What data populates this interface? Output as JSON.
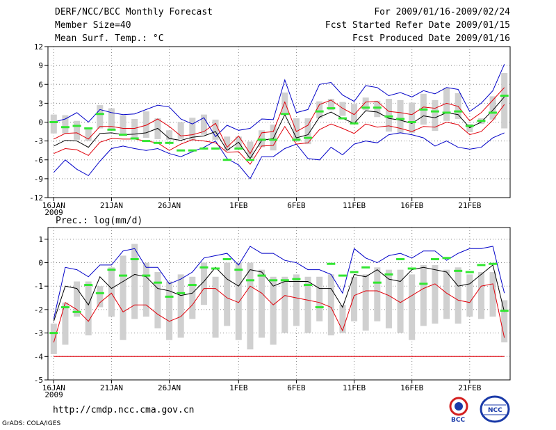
{
  "header": {
    "title": "DERF/NCC/BCC Monthly Forecast",
    "member_size": "Member Size=40",
    "variable": "Mean Surf. Temp.: °C",
    "forecast_period": "For 2009/01/16-2009/02/24",
    "started_date": "Fcst Started Refer Date 2009/01/15",
    "produced_date": "Fcst Produced Date 2009/01/16"
  },
  "footer": {
    "url": "http://cmdp.ncc.cma.gov.cn",
    "grads": "GrADS: COLA/IGES",
    "logo_bcc": "BCC",
    "logo_ncc": "NCC"
  },
  "colors": {
    "box": "#d0d0d0",
    "mean": "#000000",
    "envelope": "#0000c8",
    "inner": "#e0000a",
    "obs": "#32e632",
    "grid": "#888888"
  },
  "chart_data": [
    {
      "type": "line",
      "title": "Mean Surf. Temp.: °C",
      "ylabel": "°C",
      "ylim": [
        -12,
        12
      ],
      "yticks": [
        12,
        9,
        6,
        3,
        0,
        -3,
        -6,
        -9,
        -12
      ],
      "xlim": [
        -0.5,
        39.5
      ],
      "xticks": [
        {
          "day": 0,
          "label": "16JAN",
          "sub": "2009"
        },
        {
          "day": 5,
          "label": "21JAN"
        },
        {
          "day": 10,
          "label": "26JAN"
        },
        {
          "day": 16,
          "label": "1FEB"
        },
        {
          "day": 21,
          "label": "6FEB"
        },
        {
          "day": 26,
          "label": "11FEB"
        },
        {
          "day": 31,
          "label": "16FEB"
        },
        {
          "day": 36,
          "label": "21FEB"
        }
      ],
      "series": [
        {
          "name": "max",
          "color": "envelope",
          "values": [
            -8,
            -6,
            -7.5,
            -8.5,
            -6.2,
            -4.2,
            -3.8,
            -4.2,
            -4.5,
            -4.2,
            -5,
            -5.5,
            -4.7,
            -4,
            -3,
            -5.8,
            -6.8,
            -9,
            -5.5,
            -5.5,
            -4.2,
            -3.5,
            -5.8,
            -6,
            -4,
            -5.2,
            -3.5,
            -3,
            -3.3,
            -2,
            -1.7,
            -2,
            -2.5,
            -3.8,
            -3,
            -4,
            -4.3,
            -4,
            -2.5,
            -1.7
          ]
        },
        {
          "name": "min",
          "color": "envelope",
          "values": [
            0,
            0.5,
            1.5,
            0,
            2,
            1.5,
            1.2,
            1.3,
            2,
            2.7,
            2.4,
            0.5,
            -0.3,
            0.7,
            -2.3,
            -0.5,
            -1.3,
            -1,
            0.5,
            0.4,
            6.7,
            1.5,
            2,
            6,
            6.3,
            4.3,
            3.3,
            5.8,
            5.5,
            4.2,
            4.7,
            4,
            5,
            4.5,
            5.5,
            5.2,
            1.7,
            3,
            5,
            9.2
          ]
        },
        {
          "name": "upper",
          "color": "inner",
          "values": [
            -2.7,
            -1.8,
            -1.7,
            -2.7,
            -0.7,
            -0.7,
            -1,
            -1,
            -0.5,
            0.5,
            -0.7,
            -2.2,
            -2,
            -1.5,
            -0.2,
            -4,
            -2.2,
            -5,
            -1.7,
            -1.5,
            3.2,
            -1.5,
            -0.5,
            2.8,
            3.5,
            2.2,
            1.2,
            3.2,
            3.3,
            1.7,
            1.5,
            1.2,
            2.4,
            2.2,
            3,
            2.5,
            0.2,
            1.5,
            3.5,
            5.5
          ]
        },
        {
          "name": "lower",
          "color": "inner",
          "values": [
            -5,
            -4.2,
            -4.4,
            -5.3,
            -3.2,
            -2.6,
            -2.7,
            -2.7,
            -3,
            -3.3,
            -4.5,
            -3.5,
            -2.8,
            -3,
            -3.3,
            -4.8,
            -4.7,
            -6.7,
            -3.8,
            -3.7,
            -0.7,
            -3.5,
            -3.3,
            -1.2,
            -0.3,
            -1,
            -1.8,
            -0.3,
            -0.8,
            -0.6,
            -1,
            -1.5,
            -0.7,
            -0.8,
            0,
            -0.4,
            -2,
            -1.5,
            0.3,
            2.8
          ]
        },
        {
          "name": "mean",
          "color": "mean",
          "values": [
            -3.8,
            -2.9,
            -3,
            -4,
            -1.8,
            -1.7,
            -2,
            -1.9,
            -1.7,
            -1,
            -2.6,
            -2.9,
            -2.4,
            -2.2,
            -1.5,
            -4.5,
            -3.2,
            -5.8,
            -2.9,
            -2.6,
            1.2,
            -2.5,
            -2,
            0.8,
            1.6,
            0.6,
            -0.2,
            1.8,
            1.6,
            0.6,
            0.3,
            -0.2,
            1,
            0.7,
            1.5,
            1.2,
            -0.9,
            0,
            1.9,
            4
          ]
        },
        {
          "name": "box_low",
          "color": "box",
          "values": [
            -1.8,
            -1.8,
            -2.8,
            -3,
            -1,
            -1.3,
            -2.2,
            -2.5,
            -2.5,
            -2.7,
            -2.8,
            -2.7,
            -2.9,
            -2,
            -2.8,
            -4.5,
            -4.3,
            -5.7,
            -4,
            -4.5,
            1.5,
            -3.1,
            -3.5,
            0.6,
            1.9,
            1,
            -0.1,
            1.9,
            0.8,
            -1.5,
            -1.7,
            -1.7,
            -0.4,
            -1.4,
            0.2,
            0.5,
            -1.6,
            -0.3,
            0.4,
            -1
          ]
        },
        {
          "name": "box_high",
          "color": "box",
          "values": [
            1.2,
            1.1,
            0.2,
            -0.9,
            2.7,
            2.2,
            1.1,
            0.5,
            1.7,
            0.6,
            -1.3,
            0,
            0.7,
            1.2,
            0.4,
            -2.3,
            -2.3,
            -3.1,
            -1.3,
            -0.4,
            4.7,
            0.6,
            0.6,
            3.3,
            3.7,
            3.2,
            2.9,
            3.9,
            3.4,
            3.7,
            3.5,
            3.1,
            4.5,
            3.5,
            5.4,
            4.6,
            -0.3,
            0.6,
            4.1,
            7.8
          ]
        },
        {
          "name": "obs",
          "color": "obs",
          "values": [
            0,
            -0.8,
            -0.6,
            -1,
            1.3,
            -1.2,
            -2,
            -2.6,
            -3,
            -3.3,
            -3.3,
            -4.5,
            -4.5,
            -4.2,
            -4.2,
            -6,
            -4.2,
            -6,
            -2.8,
            -2.8,
            1.3,
            -2.8,
            -2.5,
            1.7,
            2.2,
            0.6,
            -0.2,
            2.3,
            2.3,
            0.9,
            0.5,
            0,
            2,
            1.7,
            1.5,
            1.7,
            -0.6,
            0.2,
            1.5,
            4.2
          ]
        }
      ]
    },
    {
      "type": "line",
      "title": "Prec.: log(mm/d)",
      "ylabel": "log(mm/d)",
      "ylim": [
        -5,
        1.5
      ],
      "yticks": [
        1,
        0,
        -1,
        -2,
        -3,
        -4,
        -5
      ],
      "xlim": [
        -0.5,
        39.5
      ],
      "xticks": [
        {
          "day": 0,
          "label": "16JAN",
          "sub": "2009"
        },
        {
          "day": 5,
          "label": "21JAN"
        },
        {
          "day": 10,
          "label": "26JAN"
        },
        {
          "day": 16,
          "label": "1FEB"
        },
        {
          "day": 21,
          "label": "6FEB"
        },
        {
          "day": 26,
          "label": "11FEB"
        },
        {
          "day": 31,
          "label": "16FEB"
        },
        {
          "day": 36,
          "label": "21FEB"
        }
      ],
      "series": [
        {
          "name": "max",
          "color": "envelope",
          "values": [
            -2.4,
            -0.2,
            -0.3,
            -0.6,
            -0.1,
            -0.1,
            0.5,
            0.6,
            -0.2,
            -0.2,
            -0.9,
            -0.7,
            -0.4,
            0.2,
            0.3,
            0.4,
            -0.1,
            0.7,
            0.4,
            0.4,
            0.1,
            0,
            -0.3,
            -0.3,
            -0.5,
            -1.3,
            0.6,
            0.2,
            0,
            0.3,
            0.4,
            0.2,
            0.5,
            0.5,
            0.1,
            0.4,
            0.6,
            0.6,
            0.7,
            -1.3
          ]
        },
        {
          "name": "mean",
          "color": "mean",
          "values": [
            -2.5,
            -1,
            -1.1,
            -1.8,
            -0.6,
            -1.1,
            -0.8,
            -0.5,
            -0.6,
            -1.1,
            -1.2,
            -1.4,
            -1.3,
            -0.8,
            -0.2,
            -0.7,
            -1,
            -0.3,
            -0.4,
            -1,
            -0.8,
            -0.8,
            -0.8,
            -1.1,
            -1.1,
            -1.9,
            -0.5,
            -0.6,
            -0.3,
            -0.7,
            -0.8,
            -0.3,
            -0.2,
            -0.3,
            -0.4,
            -1,
            -0.9,
            -0.5,
            -0.1,
            -2.1
          ]
        },
        {
          "name": "upper_red",
          "color": "inner",
          "values": [
            -3.4,
            -1.7,
            -2,
            -2.5,
            -1.7,
            -1.3,
            -2.1,
            -1.8,
            -1.8,
            -2.2,
            -2.5,
            -2.3,
            -1.8,
            -1.1,
            -1.1,
            -1.5,
            -1.7,
            -1,
            -1.3,
            -1.8,
            -1.4,
            -1.5,
            -1.6,
            -1.7,
            -1.9,
            -2.9,
            -1.4,
            -1.2,
            -1.2,
            -1.4,
            -1.7,
            -1.4,
            -1.1,
            -0.9,
            -1.3,
            -1.6,
            -1.7,
            -1,
            -0.9,
            -3.2
          ]
        },
        {
          "name": "box_low",
          "color": "box",
          "values": [
            -3.9,
            -3.5,
            -2.3,
            -3.1,
            -1.9,
            -2.3,
            -3.3,
            -2.4,
            -2.3,
            -2.8,
            -3.3,
            -3.2,
            -2.4,
            -1.8,
            -3.2,
            -2.7,
            -3.3,
            -3.7,
            -3.2,
            -3.5,
            -3,
            -2.7,
            -3,
            -2.5,
            -3.1,
            -3,
            -2.5,
            -2.9,
            -2.5,
            -2.8,
            -3,
            -3.3,
            -2.7,
            -2.6,
            -2.4,
            -2.6,
            -2.3,
            -2.4,
            -2.3,
            -3.4
          ]
        },
        {
          "name": "box_high",
          "color": "box",
          "values": [
            -2.6,
            -1.7,
            -0.8,
            -0.8,
            -1,
            -0.2,
            0.3,
            0.8,
            0,
            -0.4,
            -0.8,
            -0.5,
            -0.6,
            0,
            -0.6,
            0,
            0,
            0,
            -0.3,
            -0.6,
            -0.6,
            -0.5,
            -0.6,
            -0.6,
            -0.5,
            -1.8,
            -0.6,
            -0.5,
            -0.2,
            -0.3,
            -0.3,
            -0.5,
            -0.1,
            -0.1,
            -0.3,
            -0.2,
            -0.5,
            -0.4,
            -0.4,
            -1.6
          ]
        },
        {
          "name": "obs",
          "color": "obs",
          "values": [
            -3,
            -1.9,
            -2.1,
            -0.95,
            -1.3,
            -0.3,
            -0.55,
            0.15,
            -0.55,
            -0.85,
            -1.45,
            -1.3,
            -0.95,
            -0.2,
            -0.25,
            0.15,
            -0.3,
            -0.75,
            -0.55,
            -0.75,
            -0.75,
            -0.7,
            -0.95,
            -1.9,
            -0.05,
            -0.55,
            -0.4,
            -0.2,
            -0.85,
            -0.5,
            0.15,
            -0.25,
            -0.9,
            0.15,
            0.2,
            -0.35,
            -0.4,
            -0.1,
            -0.05,
            -2.05
          ]
        }
      ],
      "floor": -4
    }
  ]
}
